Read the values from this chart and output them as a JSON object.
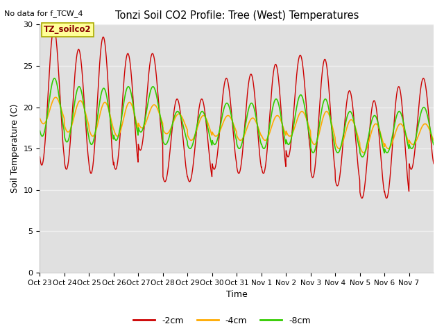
{
  "title": "Tonzi Soil CO2 Profile: Tree (West) Temperatures",
  "no_data_text": "No data for f_TCW_4",
  "annotation_text": "TZ_soilco2",
  "xlabel": "Time",
  "ylabel": "Soil Temperature (C)",
  "ylim": [
    0,
    30
  ],
  "yticks": [
    0,
    5,
    10,
    15,
    20,
    25,
    30
  ],
  "x_tick_labels": [
    "Oct 23",
    "Oct 24",
    "Oct 25",
    "Oct 26",
    "Oct 27",
    "Oct 28",
    "Oct 29",
    "Oct 30",
    "Oct 31",
    "Nov 1",
    "Nov 2",
    "Nov 3",
    "Nov 4",
    "Nov 5",
    "Nov 6",
    "Nov 7"
  ],
  "line_colors": [
    "#cc0000",
    "#ffaa00",
    "#33cc00"
  ],
  "line_labels": [
    "-2cm",
    "-4cm",
    "-8cm"
  ],
  "background_color": "#e0e0e0",
  "grid_color": "#f0f0f0",
  "n_points_per_day": 96,
  "n_days": 16,
  "day_peak_2cm": [
    29.5,
    27.0,
    28.5,
    26.5,
    26.5,
    21.0,
    21.0,
    23.5,
    24.0,
    25.2,
    26.3,
    25.8,
    22.0,
    20.8,
    22.5,
    23.5
  ],
  "day_trough_2cm": [
    13.0,
    12.5,
    12.0,
    12.5,
    14.8,
    11.0,
    11.0,
    12.5,
    12.0,
    12.0,
    14.0,
    11.5,
    10.5,
    9.0,
    9.0,
    12.5
  ],
  "day_peak_4cm": [
    21.2,
    20.8,
    20.6,
    20.6,
    20.3,
    19.2,
    19.0,
    19.0,
    18.7,
    19.0,
    19.5,
    19.5,
    18.5,
    18.0,
    18.0,
    18.0
  ],
  "day_trough_4cm": [
    18.0,
    17.0,
    16.5,
    16.5,
    17.5,
    16.8,
    16.0,
    16.5,
    16.0,
    16.0,
    16.5,
    15.5,
    15.0,
    14.5,
    15.0,
    15.5
  ],
  "day_peak_8cm": [
    23.5,
    22.5,
    22.3,
    22.5,
    22.5,
    19.5,
    19.5,
    20.5,
    20.5,
    21.0,
    21.5,
    21.0,
    19.5,
    19.0,
    19.5,
    20.0
  ],
  "day_trough_8cm": [
    16.5,
    15.8,
    15.5,
    16.0,
    17.0,
    15.5,
    15.0,
    15.5,
    15.0,
    15.0,
    15.5,
    14.5,
    14.5,
    14.0,
    14.5,
    15.0
  ],
  "phase_peak_2cm": 0.58,
  "phase_peak_4cm": 0.65,
  "phase_peak_8cm": 0.6,
  "figsize": [
    6.4,
    4.8
  ],
  "dpi": 100
}
